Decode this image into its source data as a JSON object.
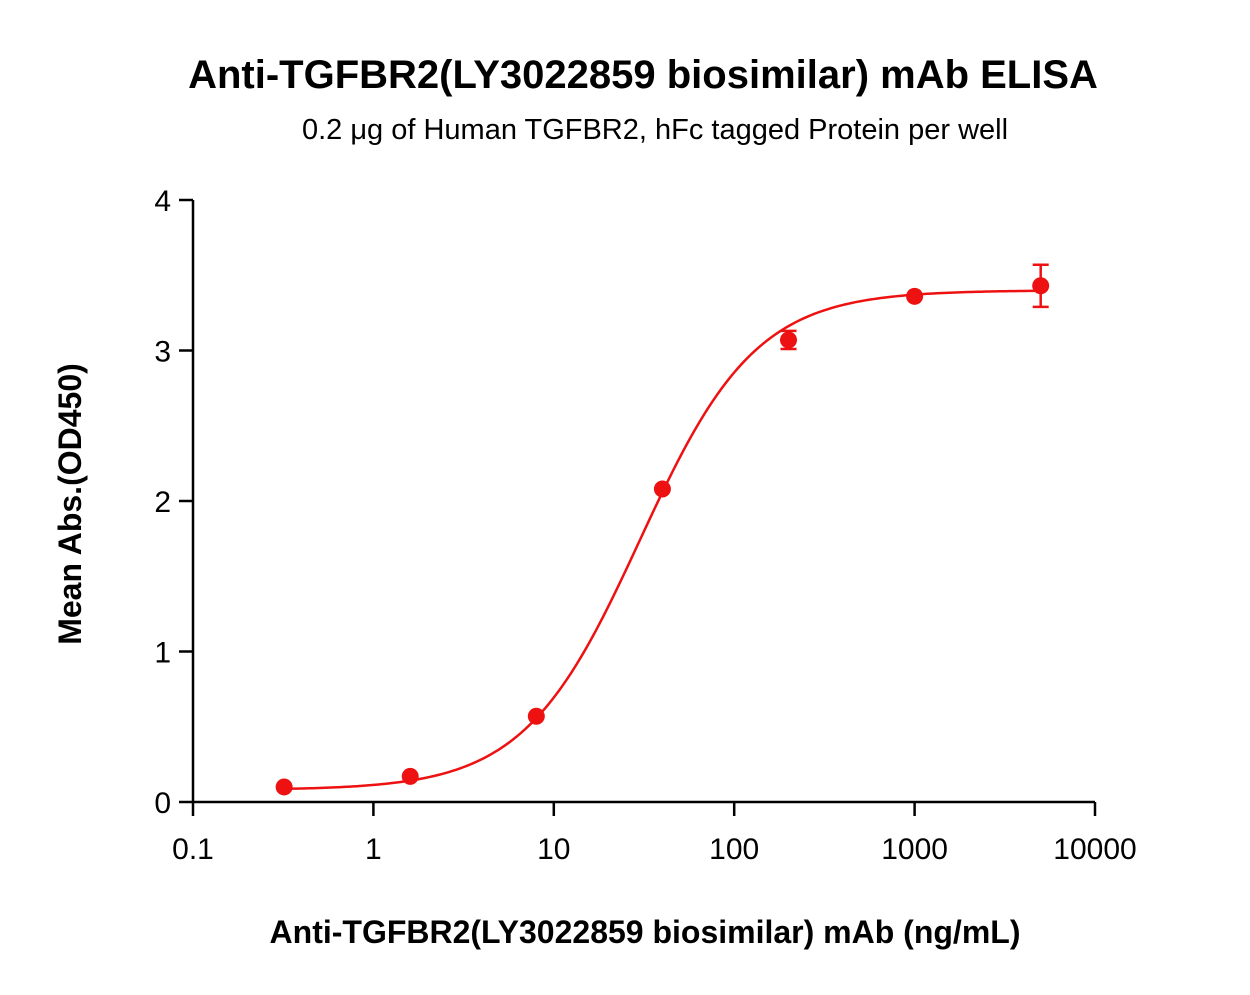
{
  "chart_data": {
    "type": "scatter",
    "title": "Anti-TGFBR2(LY3022859 biosimilar) mAb ELISA",
    "subtitle": "0.2 μg of Human TGFBR2, hFc tagged Protein per well",
    "xlabel": "Anti-TGFBR2(LY3022859 biosimilar) mAb (ng/mL)",
    "ylabel": "Mean Abs.(OD450)",
    "x_scale": "log",
    "xlim": [
      0.1,
      10000
    ],
    "ylim": [
      0,
      4
    ],
    "x_ticks": [
      0.1,
      1,
      10,
      100,
      1000,
      10000
    ],
    "x_tick_labels": [
      "0.1",
      "1",
      "10",
      "100",
      "1000",
      "10000"
    ],
    "y_ticks": [
      0,
      1,
      2,
      3,
      4
    ],
    "y_tick_labels": [
      "0",
      "1",
      "2",
      "3",
      "4"
    ],
    "color": "#ee1111",
    "grid": false,
    "points": [
      {
        "x": 0.32,
        "y": 0.1,
        "err": 0.0
      },
      {
        "x": 1.6,
        "y": 0.17,
        "err": 0.0
      },
      {
        "x": 8,
        "y": 0.57,
        "err": 0.0
      },
      {
        "x": 40,
        "y": 2.08,
        "err": 0.0
      },
      {
        "x": 200,
        "y": 3.07,
        "err": 0.06
      },
      {
        "x": 1000,
        "y": 3.36,
        "err": 0.0
      },
      {
        "x": 5000,
        "y": 3.43,
        "err": 0.14
      }
    ],
    "fit": {
      "model": "4PL",
      "bottom": 0.08,
      "top": 3.4,
      "ec50": 30,
      "hill": 1.35,
      "x_range": [
        0.32,
        5000
      ]
    }
  }
}
